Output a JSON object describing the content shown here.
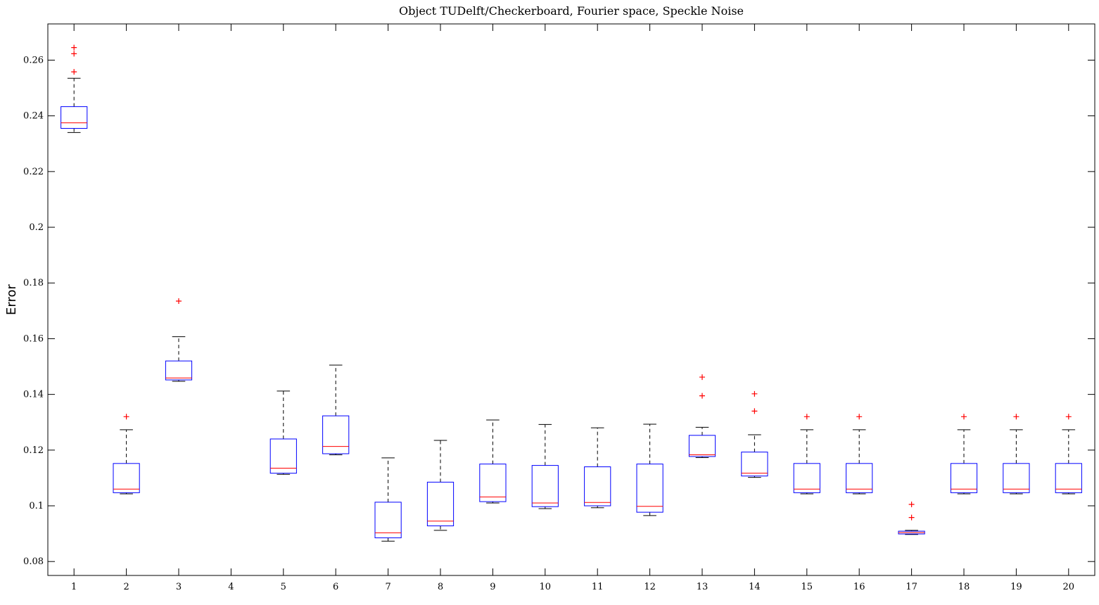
{
  "chart_data": {
    "type": "box",
    "title": "Object TUDelft/Checkerboard, Fourier space, Speckle Noise",
    "xlabel": "",
    "ylabel": "Error",
    "xlim": [
      0.5,
      20.5
    ],
    "ylim": [
      0.075,
      0.273
    ],
    "yticks": [
      0.08,
      0.1,
      0.12,
      0.14,
      0.16,
      0.18,
      0.2,
      0.22,
      0.24,
      0.26
    ],
    "ytick_labels": [
      "0.08",
      "0.1",
      "0.12",
      "0.14",
      "0.16",
      "0.18",
      "0.2",
      "0.22",
      "0.24",
      "0.26"
    ],
    "categories": [
      "1",
      "2",
      "3",
      "4",
      "5",
      "6",
      "7",
      "8",
      "9",
      "10",
      "11",
      "12",
      "13",
      "14",
      "15",
      "16",
      "17",
      "18",
      "19",
      "20"
    ],
    "grid": false,
    "colors": {
      "box": "#0000ff",
      "median": "#ff0000",
      "whisker": "#000000",
      "outlier": "#ff0000"
    },
    "boxes": [
      {
        "x": 1,
        "whisker_low": 0.234,
        "q1": 0.2355,
        "median": 0.2375,
        "q3": 0.2433,
        "whisker_high": 0.2535,
        "outliers": [
          0.2558,
          0.2623,
          0.2645
        ]
      },
      {
        "x": 2,
        "whisker_low": 0.1043,
        "q1": 0.1047,
        "median": 0.106,
        "q3": 0.1152,
        "whisker_high": 0.1273,
        "outliers": [
          0.132
        ]
      },
      {
        "x": 3,
        "whisker_low": 0.1447,
        "q1": 0.1452,
        "median": 0.1459,
        "q3": 0.152,
        "whisker_high": 0.1607,
        "outliers": [
          0.1735
        ]
      },
      {
        "x": 4,
        "whisker_low": null,
        "q1": null,
        "median": null,
        "q3": null,
        "whisker_high": null,
        "outliers": []
      },
      {
        "x": 5,
        "whisker_low": 0.1113,
        "q1": 0.1117,
        "median": 0.1135,
        "q3": 0.124,
        "whisker_high": 0.1412,
        "outliers": []
      },
      {
        "x": 6,
        "whisker_low": 0.1183,
        "q1": 0.1187,
        "median": 0.1213,
        "q3": 0.1323,
        "whisker_high": 0.1505,
        "outliers": []
      },
      {
        "x": 7,
        "whisker_low": 0.0873,
        "q1": 0.0885,
        "median": 0.0903,
        "q3": 0.1013,
        "whisker_high": 0.1172,
        "outliers": []
      },
      {
        "x": 8,
        "whisker_low": 0.0912,
        "q1": 0.0928,
        "median": 0.0945,
        "q3": 0.1085,
        "whisker_high": 0.1235,
        "outliers": []
      },
      {
        "x": 9,
        "whisker_low": 0.101,
        "q1": 0.1015,
        "median": 0.1032,
        "q3": 0.115,
        "whisker_high": 0.1308,
        "outliers": []
      },
      {
        "x": 10,
        "whisker_low": 0.099,
        "q1": 0.0997,
        "median": 0.101,
        "q3": 0.1145,
        "whisker_high": 0.1292,
        "outliers": []
      },
      {
        "x": 11,
        "whisker_low": 0.0993,
        "q1": 0.1,
        "median": 0.1012,
        "q3": 0.114,
        "whisker_high": 0.128,
        "outliers": []
      },
      {
        "x": 12,
        "whisker_low": 0.0965,
        "q1": 0.0977,
        "median": 0.0998,
        "q3": 0.115,
        "whisker_high": 0.1293,
        "outliers": []
      },
      {
        "x": 13,
        "whisker_low": 0.1173,
        "q1": 0.1177,
        "median": 0.1183,
        "q3": 0.1253,
        "whisker_high": 0.1282,
        "outliers": [
          0.1395,
          0.1462
        ]
      },
      {
        "x": 14,
        "whisker_low": 0.1102,
        "q1": 0.1107,
        "median": 0.1117,
        "q3": 0.1193,
        "whisker_high": 0.1255,
        "outliers": [
          0.134,
          0.1402
        ]
      },
      {
        "x": 15,
        "whisker_low": 0.1043,
        "q1": 0.1047,
        "median": 0.106,
        "q3": 0.1152,
        "whisker_high": 0.1273,
        "outliers": [
          0.132
        ]
      },
      {
        "x": 16,
        "whisker_low": 0.1043,
        "q1": 0.1047,
        "median": 0.106,
        "q3": 0.1152,
        "whisker_high": 0.1273,
        "outliers": [
          0.132
        ]
      },
      {
        "x": 17,
        "whisker_low": 0.0897,
        "q1": 0.0899,
        "median": 0.0904,
        "q3": 0.0909,
        "whisker_high": 0.0912,
        "outliers": [
          0.0958,
          0.1005
        ]
      },
      {
        "x": 18,
        "whisker_low": 0.1043,
        "q1": 0.1047,
        "median": 0.106,
        "q3": 0.1152,
        "whisker_high": 0.1273,
        "outliers": [
          0.132
        ]
      },
      {
        "x": 19,
        "whisker_low": 0.1043,
        "q1": 0.1047,
        "median": 0.106,
        "q3": 0.1152,
        "whisker_high": 0.1273,
        "outliers": [
          0.132
        ]
      },
      {
        "x": 20,
        "whisker_low": 0.1043,
        "q1": 0.1047,
        "median": 0.106,
        "q3": 0.1152,
        "whisker_high": 0.1273,
        "outliers": [
          0.132
        ]
      }
    ]
  }
}
